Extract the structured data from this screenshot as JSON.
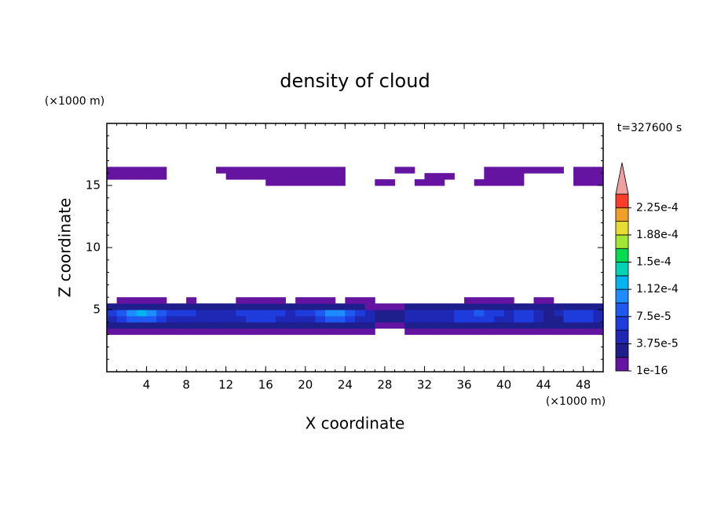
{
  "chart_data": {
    "type": "contour",
    "title": "density of cloud",
    "xlabel": "X coordinate",
    "ylabel": "Z coordinate",
    "xunit": "(×1000 m)",
    "yunit": "(×1000 m)",
    "annotation": "t=327600 s",
    "xlim": [
      0,
      50
    ],
    "ylim": [
      0,
      20
    ],
    "xticks": [
      4,
      8,
      12,
      16,
      20,
      24,
      28,
      32,
      36,
      40,
      44,
      48
    ],
    "yticks": [
      5,
      10,
      15
    ],
    "colorbar": {
      "levels": [
        1e-16,
        1.875e-05,
        3.75e-05,
        5.625e-05,
        7.5e-05,
        9.375e-05,
        0.0001125,
        0.00013125,
        0.00015,
        0.00016875,
        0.0001875,
        0.00020625,
        0.000225,
        0.00024375
      ],
      "colors": [
        "#6414a0",
        "#1e1e8c",
        "#1e28b4",
        "#1e3cdc",
        "#1e5af0",
        "#1e8cff",
        "#00b4f0",
        "#00d2b4",
        "#00dc50",
        "#a0e632",
        "#e6dc32",
        "#f0a028",
        "#fa3c28"
      ],
      "over_color": "#f0a0a0",
      "ticks": [
        {
          "value": 1e-16,
          "label": "1e-16"
        },
        {
          "value": 3.75e-05,
          "label": "3.75e-5"
        },
        {
          "value": 7.5e-05,
          "label": "7.5e-5"
        },
        {
          "value": 0.0001125,
          "label": "1.12e-4"
        },
        {
          "value": 0.00015,
          "label": "1.5e-4"
        },
        {
          "value": 0.0001875,
          "label": "1.88e-4"
        },
        {
          "value": 0.000225,
          "label": "2.25e-4"
        }
      ]
    },
    "rows": [
      {
        "z": [
          3,
          3.5
        ],
        "values": [
          1e-05,
          1e-05,
          1e-05,
          1e-05,
          1e-05,
          1e-05,
          1e-05,
          1e-05,
          1e-05,
          1e-05,
          1e-05,
          1e-05,
          1e-05,
          1e-05,
          1e-05,
          1e-05,
          1e-05,
          1e-05,
          1e-05,
          1e-05,
          1e-05,
          1e-05,
          1e-05,
          1e-05,
          1e-05,
          1e-05,
          1e-05,
          0,
          0,
          0,
          1e-05,
          1e-05,
          1e-05,
          1e-05,
          1e-05,
          1e-05,
          1e-05,
          1e-05,
          1e-05,
          1e-05,
          1e-05,
          1e-05,
          1e-05,
          1e-05,
          1e-05,
          1e-05,
          1e-05,
          1e-05,
          1e-05,
          1e-05
        ]
      },
      {
        "z": [
          3.5,
          4
        ],
        "values": [
          2e-05,
          2e-05,
          2e-05,
          2e-05,
          2e-05,
          2e-05,
          2e-05,
          2e-05,
          2e-05,
          2e-05,
          2e-05,
          2e-05,
          2e-05,
          2e-05,
          2e-05,
          2e-05,
          2e-05,
          2e-05,
          2e-05,
          2e-05,
          2e-05,
          2e-05,
          2e-05,
          2e-05,
          2e-05,
          2e-05,
          2e-05,
          1e-05,
          1e-05,
          1e-05,
          2e-05,
          2e-05,
          2e-05,
          2e-05,
          2e-05,
          2e-05,
          2e-05,
          2e-05,
          2e-05,
          2e-05,
          2e-05,
          2e-05,
          2e-05,
          2e-05,
          2e-05,
          2e-05,
          2e-05,
          2e-05,
          2e-05,
          2e-05
        ]
      },
      {
        "z": [
          4,
          4.5
        ],
        "values": [
          4e-05,
          6e-05,
          8e-05,
          8e-05,
          8e-05,
          6e-05,
          5e-05,
          5e-05,
          5e-05,
          5e-05,
          5e-05,
          4e-05,
          5e-05,
          5e-05,
          6e-05,
          6e-05,
          6e-05,
          5e-05,
          5e-05,
          5e-05,
          5e-05,
          7e-05,
          8e-05,
          8e-05,
          7e-05,
          5e-05,
          4e-05,
          3e-05,
          3e-05,
          3e-05,
          4e-05,
          5e-05,
          5e-05,
          5e-05,
          5e-05,
          6e-05,
          6e-05,
          7e-05,
          6e-05,
          5e-05,
          5e-05,
          6e-05,
          6e-05,
          5e-05,
          3e-05,
          3e-05,
          6e-05,
          6e-05,
          6e-05,
          5e-05
        ]
      },
      {
        "z": [
          4.5,
          5
        ],
        "values": [
          6e-05,
          9e-05,
          0.00011,
          0.000125,
          0.00011,
          9e-05,
          6e-05,
          6e-05,
          6e-05,
          5e-05,
          5e-05,
          5e-05,
          5e-05,
          6e-05,
          7e-05,
          7e-05,
          7e-05,
          6e-05,
          5e-05,
          6e-05,
          6e-05,
          9e-05,
          0.0001,
          0.0001,
          9e-05,
          7e-05,
          4e-05,
          3e-05,
          3e-05,
          3e-05,
          4e-05,
          5e-05,
          5e-05,
          4e-05,
          5e-05,
          6e-05,
          7e-05,
          8e-05,
          7e-05,
          6e-05,
          5e-05,
          6e-05,
          7e-05,
          5e-05,
          3e-05,
          4e-05,
          6e-05,
          7e-05,
          6e-05,
          5e-05
        ]
      },
      {
        "z": [
          5,
          5.5
        ],
        "values": [
          2e-05,
          3e-05,
          3e-05,
          3e-05,
          3e-05,
          2e-05,
          2e-05,
          2e-05,
          2e-05,
          2e-05,
          2e-05,
          2e-05,
          2e-05,
          2e-05,
          2e-05,
          2e-05,
          2e-05,
          2e-05,
          2e-05,
          2e-05,
          2e-05,
          2e-05,
          2e-05,
          2e-05,
          2e-05,
          2e-05,
          1e-05,
          1e-05,
          1e-05,
          1e-05,
          2e-05,
          2e-05,
          2e-05,
          2e-05,
          2e-05,
          2e-05,
          2e-05,
          2e-05,
          2e-05,
          2e-05,
          2e-05,
          2e-05,
          2e-05,
          2e-05,
          2e-05,
          2e-05,
          2e-05,
          2e-05,
          2e-05,
          2e-05
        ]
      },
      {
        "z": [
          5.5,
          6
        ],
        "values": [
          0,
          1e-05,
          1e-05,
          1e-05,
          1e-05,
          1e-05,
          0,
          0,
          1e-05,
          0,
          0,
          0,
          0,
          1e-05,
          1e-05,
          1e-05,
          1e-05,
          1e-05,
          0,
          1e-05,
          1e-05,
          1e-05,
          1e-05,
          0,
          1e-05,
          1e-05,
          1e-05,
          0,
          0,
          0,
          0,
          0,
          0,
          0,
          0,
          0,
          1e-05,
          1e-05,
          1e-05,
          1e-05,
          1e-05,
          0,
          0,
          1e-05,
          1e-05,
          0,
          0,
          0,
          0,
          0
        ]
      },
      {
        "z": [
          15,
          15.5
        ],
        "values": [
          0,
          0,
          0,
          0,
          0,
          0,
          0,
          0,
          0,
          0,
          0,
          0,
          0,
          0,
          0,
          0,
          1e-05,
          1e-05,
          1e-05,
          1e-05,
          1e-05,
          1e-05,
          1e-05,
          1e-05,
          0,
          0,
          0,
          1e-05,
          1e-05,
          0,
          0,
          1e-05,
          1e-05,
          1e-05,
          0,
          0,
          0,
          1e-05,
          1e-05,
          1e-05,
          1e-05,
          1e-05,
          0,
          0,
          0,
          0,
          0,
          1e-05,
          1e-05,
          1e-05
        ]
      },
      {
        "z": [
          15.5,
          16
        ],
        "values": [
          1e-05,
          1e-05,
          1e-05,
          1e-05,
          1e-05,
          1e-05,
          0,
          0,
          0,
          0,
          0,
          0,
          1e-05,
          1e-05,
          1e-05,
          1e-05,
          1e-05,
          1e-05,
          1e-05,
          1e-05,
          1e-05,
          1e-05,
          1e-05,
          1e-05,
          0,
          0,
          0,
          0,
          0,
          0,
          0,
          0,
          1e-05,
          1e-05,
          1e-05,
          0,
          0,
          0,
          1e-05,
          1e-05,
          1e-05,
          1e-05,
          0,
          0,
          0,
          0,
          0,
          1e-05,
          1e-05,
          1e-05
        ]
      },
      {
        "z": [
          16,
          16.5
        ],
        "values": [
          1e-05,
          1e-05,
          1e-05,
          1e-05,
          1e-05,
          1e-05,
          0,
          0,
          0,
          0,
          0,
          1e-05,
          1e-05,
          1e-05,
          1e-05,
          1e-05,
          1e-05,
          1e-05,
          1e-05,
          1e-05,
          1e-05,
          1e-05,
          1e-05,
          1e-05,
          0,
          0,
          0,
          0,
          0,
          1e-05,
          1e-05,
          0,
          0,
          0,
          0,
          0,
          0,
          0,
          1e-05,
          1e-05,
          1e-05,
          1e-05,
          1e-05,
          1e-05,
          1e-05,
          1e-05,
          0,
          1e-05,
          1e-05,
          1e-05
        ]
      }
    ]
  }
}
